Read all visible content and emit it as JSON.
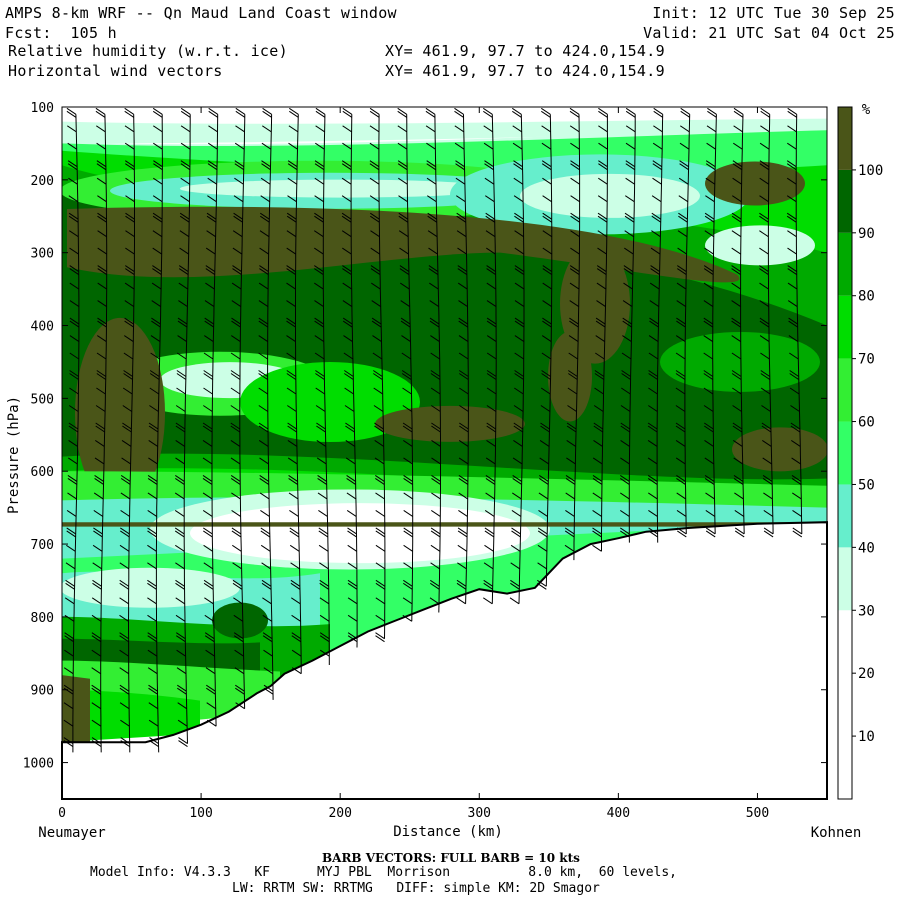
{
  "header": {
    "line1_left": "AMPS 8-km WRF -- Qn Maud Land Coast window",
    "line1_right": "Init: 12 UTC Tue 30 Sep 25",
    "line2_left": "Fcst:  105 h",
    "line2_right": "Valid: 21 UTC Sat 04 Oct 25",
    "line3_left": "Relative humidity (w.r.t. ice)",
    "line3_right": "XY= 461.9, 97.7 to 424.0,154.9",
    "line4_left": "Horizontal wind vectors",
    "line4_right": "XY= 461.9, 97.7 to 424.0,154.9"
  },
  "footer": {
    "barb_note": "BARB VECTORS:  FULL BARB = 10 kts",
    "model_line1": "Model Info: V4.3.3   KF      MYJ PBL  Morrison          8.0 km,  60 levels,",
    "model_line2": "LW: RRTM SW: RRTMG   DIFF: simple KM: 2D Smagor"
  },
  "chart_data": {
    "type": "cross-section contour",
    "ylabel": "Pressure (hPa)",
    "xlabel": "Distance (km)",
    "x_start_label": "Neumayer",
    "x_end_label": "Kohnen",
    "xlim": [
      0,
      550
    ],
    "ylim": [
      1050,
      100
    ],
    "xticks": [
      0,
      100,
      200,
      300,
      400,
      500
    ],
    "yticks": [
      100,
      200,
      300,
      400,
      500,
      600,
      700,
      800,
      900,
      1000
    ],
    "colorbar": {
      "unit": "%",
      "levels": [
        10,
        20,
        30,
        40,
        50,
        60,
        70,
        80,
        90,
        100
      ],
      "colors": [
        "#ffffff",
        "#ffffff",
        "#ffffff",
        "#ccffe6",
        "#66eecc",
        "#33ff66",
        "#33ee33",
        "#00dd00",
        "#00aa00",
        "#006600",
        "#4a5518"
      ]
    },
    "terrain_surface_hpa": [
      [
        0,
        972
      ],
      [
        30,
        972
      ],
      [
        60,
        972
      ],
      [
        80,
        962
      ],
      [
        100,
        948
      ],
      [
        120,
        930
      ],
      [
        140,
        905
      ],
      [
        150,
        895
      ],
      [
        160,
        878
      ],
      [
        180,
        860
      ],
      [
        200,
        840
      ],
      [
        220,
        820
      ],
      [
        240,
        805
      ],
      [
        260,
        790
      ],
      [
        280,
        775
      ],
      [
        300,
        762
      ],
      [
        320,
        768
      ],
      [
        340,
        760
      ],
      [
        360,
        720
      ],
      [
        380,
        700
      ],
      [
        400,
        692
      ],
      [
        420,
        683
      ],
      [
        450,
        678
      ],
      [
        500,
        672
      ],
      [
        550,
        670
      ]
    ],
    "barb_columns_km": [
      10,
      30,
      50,
      70,
      90,
      110,
      130,
      150,
      170,
      190,
      210,
      230,
      250,
      270,
      290,
      310,
      330,
      350,
      370,
      390,
      410,
      430,
      450,
      470,
      490,
      510,
      530
    ]
  }
}
